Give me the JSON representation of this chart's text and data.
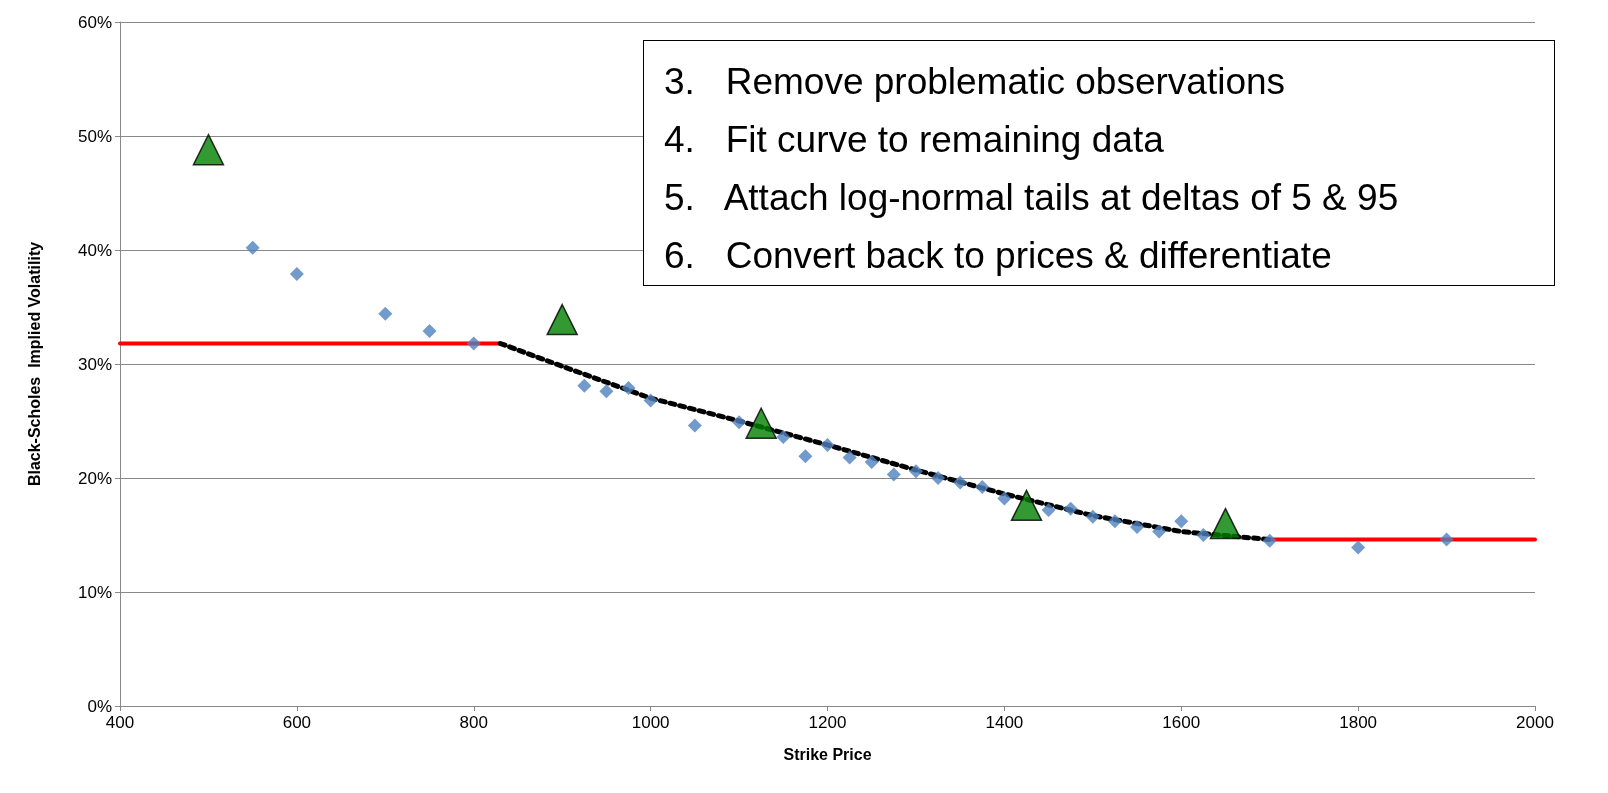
{
  "chart_data": {
    "type": "scatter",
    "xlabel": "Strike Price",
    "ylabel": "Black-Scholes  Implied Volatility",
    "xlim": [
      400,
      2000
    ],
    "xticks": [
      400,
      600,
      800,
      1000,
      1200,
      1400,
      1600,
      1800,
      2000
    ],
    "ylim": [
      0,
      60
    ],
    "yticks": [
      {
        "value": 0,
        "label": "0%"
      },
      {
        "value": 10,
        "label": "10%"
      },
      {
        "value": 20,
        "label": "20%"
      },
      {
        "value": 30,
        "label": "30%"
      },
      {
        "value": 40,
        "label": "40%"
      },
      {
        "value": 50,
        "label": "50%"
      },
      {
        "value": 60,
        "label": "60%"
      }
    ],
    "grid": "y",
    "annotations": [
      "3.   Remove problematic observations",
      "4.   Fit curve to remaining data",
      "5.   Attach log-normal tails at deltas of 5 & 95",
      "6.   Convert back to prices & differentiate"
    ],
    "series": [
      {
        "type": "line",
        "color": "#ff0000",
        "marker": "none",
        "line_style": "solid",
        "x": [
          400,
          830
        ],
        "values": [
          31.8,
          31.8
        ]
      },
      {
        "type": "line",
        "color": "#ff0000",
        "marker": "none",
        "line_style": "solid",
        "x": [
          1700,
          2000
        ],
        "values": [
          14.6,
          14.6
        ]
      },
      {
        "type": "line",
        "color": "#000000",
        "marker": "none",
        "line_style": "dotted",
        "x": [
          830,
          900,
          1000,
          1100,
          1200,
          1300,
          1400,
          1500,
          1600,
          1700
        ],
        "values": [
          31.8,
          29.8,
          27.0,
          25.0,
          22.9,
          20.7,
          18.6,
          16.7,
          15.3,
          14.6
        ]
      },
      {
        "type": "scatter",
        "color": "#4f81bd",
        "marker": "diamond",
        "x": [
          550,
          600,
          700,
          750,
          800,
          925,
          950,
          975,
          1000,
          1050,
          1100,
          1150,
          1175,
          1200,
          1225,
          1250,
          1275,
          1300,
          1325,
          1350,
          1375,
          1400,
          1450,
          1475,
          1500,
          1525,
          1550,
          1575,
          1600,
          1625,
          1700,
          1800,
          1900
        ],
        "values": [
          40.2,
          37.9,
          34.4,
          32.9,
          31.8,
          28.1,
          27.6,
          27.9,
          26.8,
          24.6,
          24.9,
          23.6,
          21.9,
          22.9,
          21.8,
          21.4,
          20.3,
          20.6,
          20.0,
          19.6,
          19.2,
          18.2,
          17.2,
          17.3,
          16.6,
          16.2,
          15.7,
          15.3,
          16.2,
          15.0,
          14.5,
          13.9,
          14.6
        ]
      },
      {
        "type": "scatter",
        "color": "#008000",
        "marker": "triangle",
        "x": [
          500,
          900,
          1125,
          1425,
          1650
        ],
        "values": [
          48.8,
          33.9,
          24.8,
          17.6,
          16.0
        ]
      }
    ]
  }
}
